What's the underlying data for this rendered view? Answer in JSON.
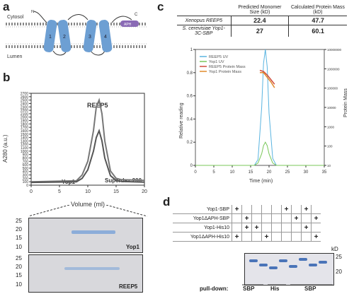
{
  "panel_a": {
    "label": "a",
    "cytosol": "Cytosol",
    "lumen": "Lumen",
    "n_term": "N",
    "c_term": "C",
    "aph": "APH",
    "helices": [
      "1",
      "2",
      "3",
      "4"
    ],
    "colors": {
      "helix": "#6d9fd3",
      "aph": "#8a6ab5",
      "lipid": "#777777"
    }
  },
  "panel_b": {
    "label": "b",
    "ylabel": "A280 (a.u.)",
    "xlabel": "Volume (ml)",
    "peak1_label": "REEP5",
    "peak2_label": "Yop1",
    "column_label": "Superdex 200",
    "gel1_label": "Yop1",
    "gel2_label": "REEP5",
    "gel_markers": [
      "25",
      "20",
      "15",
      "10"
    ]
  },
  "panel_c": {
    "label": "c",
    "table_header": [
      "",
      "Predicted Monomer Size (kD)",
      "Calculated Protein Mass (kD)"
    ],
    "table_rows": [
      [
        "Xenopus REEP5",
        "22.4",
        "47.7"
      ],
      [
        "S. cerevisiae Yop1-3C-SBP",
        "27",
        "60.1"
      ]
    ],
    "xlabel": "Time (min)",
    "ylabel_left": "Relative reading",
    "ylabel_right": "Protein Mass",
    "legend": [
      "REEP5 UV",
      "Yop1 UV",
      "REEP5 Protein Mass",
      "Yop1 Protein Mass"
    ]
  },
  "panel_d": {
    "label": "d",
    "rows": [
      "Yop1-SBP",
      "Yop1ΔAPH-SBP",
      "Yop1-His10",
      "Yop1ΔAPH-His10"
    ],
    "kd": "kD",
    "markers": [
      "25",
      "20"
    ],
    "pulldown_label": "pull-down:",
    "pulldown_groups": [
      "SBP",
      "His",
      "SBP"
    ]
  },
  "chart_data": [
    {
      "type": "line",
      "title": "",
      "xlabel": "Volume (ml)",
      "ylabel": "A280 (a.u.)",
      "xlim": [
        0,
        20
      ],
      "ylim": [
        0,
        2700
      ],
      "x_ticks": [
        0,
        5,
        10,
        15,
        20
      ],
      "y_ticks": [
        0,
        100,
        200,
        300,
        400,
        500,
        600,
        700,
        800,
        900,
        1000,
        1100,
        1200,
        1300,
        1400,
        1500,
        1600,
        1700,
        1800,
        1900,
        2000,
        2100,
        2200,
        2300,
        2400,
        2500,
        2600,
        2700
      ],
      "series": [
        {
          "name": "REEP5",
          "x": [
            0,
            8,
            9,
            10,
            11,
            11.5,
            12,
            12.5,
            13,
            14,
            15,
            16,
            20
          ],
          "y": [
            100,
            130,
            300,
            700,
            1600,
            2300,
            2500,
            2100,
            1300,
            420,
            200,
            160,
            140
          ]
        },
        {
          "name": "Yop1",
          "x": [
            0,
            8,
            9,
            10,
            11,
            11.5,
            12,
            12.5,
            13,
            14,
            15,
            16,
            20
          ],
          "y": [
            80,
            100,
            200,
            450,
            1000,
            1400,
            1600,
            1300,
            800,
            280,
            140,
            110,
            90
          ]
        }
      ]
    },
    {
      "type": "line",
      "title": "",
      "xlabel": "Time (min)",
      "ylabel": "Relative reading",
      "xlim": [
        0,
        35
      ],
      "ylim": [
        0,
        1.0
      ],
      "x_ticks": [
        0,
        5,
        10,
        15,
        20,
        25,
        30,
        35
      ],
      "y_ticks": [
        0,
        0.2,
        0.4,
        0.6,
        0.8,
        1.0
      ],
      "y2_ticks": [
        "10",
        "100",
        "1000",
        "10000",
        "100000",
        "1000000",
        "10000000"
      ],
      "y2_scale": "log",
      "series": [
        {
          "name": "REEP5 UV",
          "x": [
            0,
            16,
            17,
            18,
            18.5,
            19,
            19.5,
            20,
            21,
            22,
            35
          ],
          "y": [
            0,
            0,
            0.05,
            0.5,
            0.88,
            1.0,
            0.85,
            0.45,
            0.06,
            0,
            0
          ]
        },
        {
          "name": "Yop1 UV",
          "x": [
            0,
            16,
            17,
            18,
            18.5,
            19,
            19.5,
            20,
            21,
            22,
            35
          ],
          "y": [
            0,
            0,
            0.02,
            0.1,
            0.17,
            0.2,
            0.17,
            0.1,
            0.02,
            0,
            0
          ]
        },
        {
          "name": "REEP5 Protein Mass",
          "x": [
            17.5,
            18.5,
            19.5,
            20.5,
            21.5
          ],
          "y": [
            0.82,
            0.81,
            0.78,
            0.74,
            0.7
          ]
        },
        {
          "name": "Yop1 Protein Mass",
          "x": [
            17.5,
            18.5,
            19.5,
            20.5,
            21.5
          ],
          "y": [
            0.8,
            0.8,
            0.76,
            0.72,
            0.67
          ]
        }
      ]
    }
  ]
}
